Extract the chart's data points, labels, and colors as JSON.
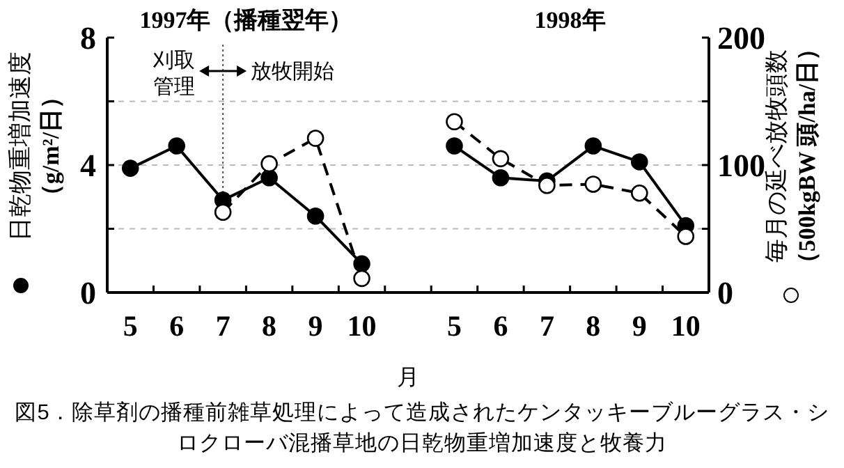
{
  "chart_data": {
    "type": "line",
    "xlabel": "月",
    "ylabel": "日乾物重増加速度（g/m²/日）",
    "y2label": "毎月の延べ放牧頭数（500kgBW 頭/ha/日）",
    "categories": [
      "5",
      "6",
      "7",
      "8",
      "9",
      "10",
      null,
      "5",
      "6",
      "7",
      "8",
      "9",
      "10"
    ],
    "series": [
      {
        "color": "#000000",
        "marker": "circle",
        "line_style": "solid",
        "values": [
          3.9,
          4.6,
          2.9,
          3.6,
          2.4,
          0.9,
          null,
          4.6,
          3.6,
          3.5,
          4.6,
          4.1,
          2.1
        ]
      },
      {
        "color": "#000000",
        "marker": "circle",
        "line_style": "dashed",
        "axis": "y2",
        "values": [
          null,
          null,
          63,
          101,
          121,
          11,
          null,
          134,
          105,
          84,
          85,
          78,
          44
        ]
      }
    ],
    "ylim": [
      0,
      8
    ],
    "yticks": [
      0,
      {
        "value": 2,
        "label": null
      },
      4,
      {
        "value": 6,
        "label": null
      },
      8
    ],
    "y2lim": [
      0,
      200
    ],
    "y2ticks": [
      0,
      {
        "value": 50,
        "label": null
      },
      100,
      {
        "value": 150,
        "label": null
      },
      200
    ],
    "grid": "y",
    "ref_lines": [
      {
        "axis": "x",
        "value": "7",
        "line_style": "dotted"
      }
    ],
    "annotations": [
      "1997年（播種翌年）",
      "1998年",
      "刈取管理",
      "放牧開始",
      "図5．除草剤の播種前雑草処理によって造成されたケンタッキーブルーグラス・シロクローバ混播草地の日乾物重増加速度と牧養力"
    ]
  }
}
